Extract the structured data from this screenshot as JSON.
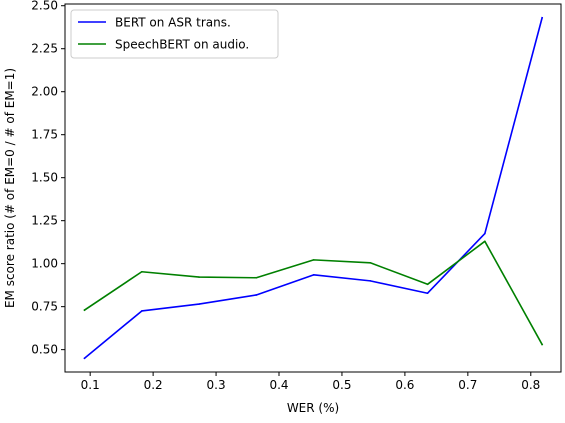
{
  "chart_data": {
    "type": "line",
    "title": "",
    "xlabel": "WER (%)",
    "ylabel": "EM score ratio (# of EM=0 / # of EM=1)",
    "xlim": [
      0.06,
      0.848
    ],
    "ylim": [
      0.37,
      2.51
    ],
    "xticks": [
      0.1,
      0.2,
      0.3,
      0.4,
      0.5,
      0.6,
      0.7,
      0.8
    ],
    "xtick_labels": [
      "0.1",
      "0.2",
      "0.3",
      "0.4",
      "0.5",
      "0.6",
      "0.7",
      "0.8"
    ],
    "yticks": [
      0.5,
      0.75,
      1.0,
      1.25,
      1.5,
      1.75,
      2.0,
      2.25,
      2.5
    ],
    "ytick_labels": [
      "0.50",
      "0.75",
      "1.00",
      "1.25",
      "1.50",
      "1.75",
      "2.00",
      "2.25",
      "2.50"
    ],
    "grid": false,
    "legend_position": "top-left",
    "x": [
      0.091,
      0.182,
      0.273,
      0.364,
      0.455,
      0.545,
      0.636,
      0.727,
      0.818
    ],
    "series": [
      {
        "name": "BERT on ASR trans.",
        "color": "#0000ff",
        "values": [
          0.45,
          0.725,
          0.765,
          0.818,
          0.935,
          0.9,
          0.828,
          1.175,
          2.43
        ]
      },
      {
        "name": "SpeechBERT on audio.",
        "color": "#008000",
        "values": [
          0.73,
          0.953,
          0.922,
          0.918,
          1.022,
          1.005,
          0.88,
          1.13,
          0.53
        ]
      }
    ]
  }
}
